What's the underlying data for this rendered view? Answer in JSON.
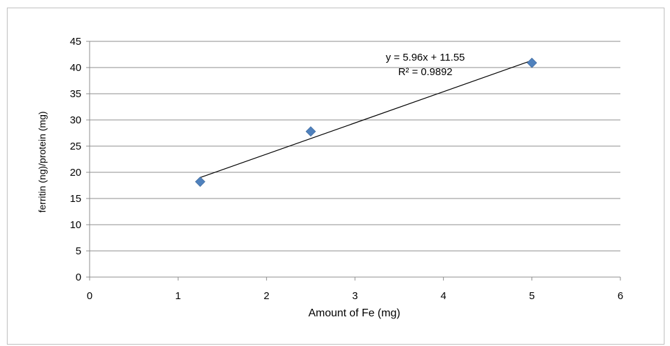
{
  "chart_data": {
    "type": "scatter",
    "xlabel": "Amount of Fe (mg)",
    "ylabel": "ferritin  (ng)/protein (mg)",
    "xlim": [
      0,
      6
    ],
    "ylim": [
      0,
      45
    ],
    "xticks": [
      0,
      1,
      2,
      3,
      4,
      5,
      6
    ],
    "yticks": [
      0,
      5,
      10,
      15,
      20,
      25,
      30,
      35,
      40,
      45
    ],
    "grid": "horizontal",
    "series": [
      {
        "marker": "diamond",
        "color": "#4f81bd",
        "points": [
          {
            "x": 1.25,
            "y": 18.2
          },
          {
            "x": 2.5,
            "y": 27.8
          },
          {
            "x": 5.0,
            "y": 40.9
          }
        ]
      }
    ],
    "trendline": {
      "type": "linear",
      "slope": 5.96,
      "intercept": 11.55,
      "x_range": [
        1.25,
        5.0
      ],
      "color": "#000000"
    },
    "annotations": {
      "equation": "y = 5.96x + 11.55",
      "r_squared": "R² = 0.9892"
    }
  }
}
